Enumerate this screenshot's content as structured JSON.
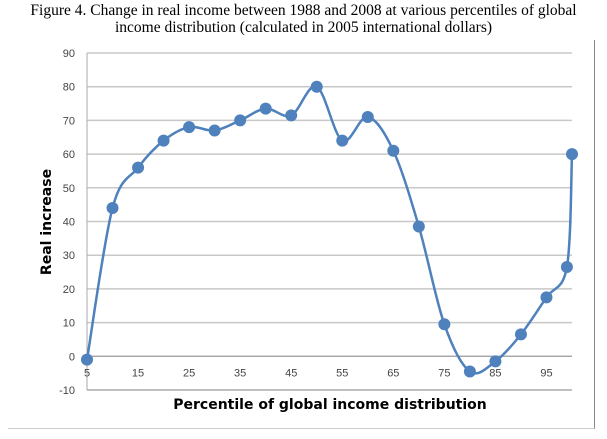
{
  "title_line1": "Figure 4. Change in real income between 1988 and 2008 at various percentiles of global",
  "title_line2": "income distribution (calculated in 2005 international dollars)",
  "chart_data": {
    "type": "line",
    "title": "Figure 4. Change in real income between 1988 and 2008 at various percentiles of global income distribution (calculated in 2005 international dollars)",
    "xlabel": "Percentile of global income distribution",
    "ylabel": "Real increase",
    "x": [
      5,
      10,
      15,
      20,
      25,
      30,
      35,
      40,
      45,
      50,
      55,
      60,
      65,
      70,
      75,
      80,
      85,
      90,
      95,
      99,
      100
    ],
    "y": [
      -1,
      44,
      56,
      64,
      68,
      67,
      70,
      73.5,
      71.5,
      80,
      64,
      71,
      61,
      38.5,
      9.5,
      -4.5,
      -1.5,
      6.5,
      17.5,
      26.5,
      60
    ],
    "xticks": [
      "5",
      "15",
      "25",
      "35",
      "45",
      "55",
      "65",
      "75",
      "85",
      "95"
    ],
    "yticks": [
      "-10",
      "0",
      "10",
      "20",
      "30",
      "40",
      "50",
      "60",
      "70",
      "80",
      "90"
    ],
    "ylim": [
      -10,
      90
    ],
    "xlim": [
      5,
      100
    ],
    "grid": true,
    "color": "#4f81bd"
  }
}
